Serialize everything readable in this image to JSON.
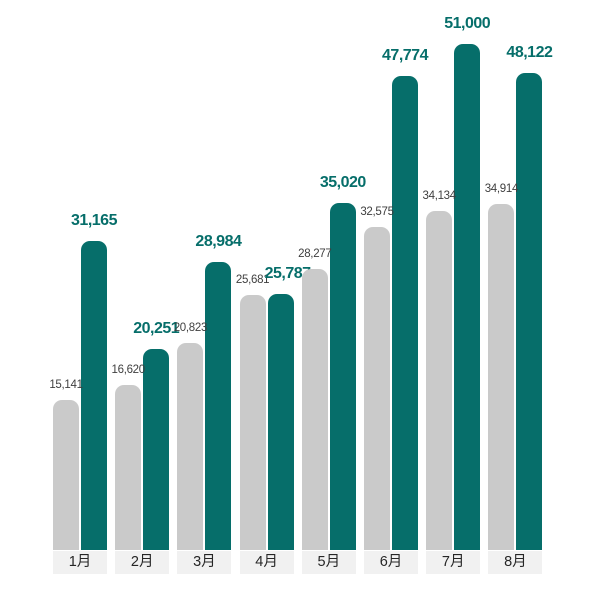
{
  "chart_data": {
    "type": "bar",
    "title": "",
    "xlabel": "",
    "ylabel": "",
    "categories": [
      "1月",
      "2月",
      "3月",
      "4月",
      "5月",
      "6月",
      "7月",
      "8月"
    ],
    "series": [
      {
        "name": "gray-series",
        "color": "#cacaca",
        "values": [
          15141,
          16620,
          20823,
          25681,
          28277,
          32575,
          34134,
          34914
        ],
        "labels": [
          "15,141",
          "16,620",
          "20,823",
          "25,681",
          "28,277",
          "32,575",
          "34,134",
          "34,914"
        ]
      },
      {
        "name": "teal-series",
        "color": "#066e6a",
        "values": [
          31165,
          20251,
          28984,
          25787,
          35020,
          47774,
          51000,
          48122
        ],
        "labels": [
          "31,165",
          "20,251",
          "28,984",
          "25,787",
          "35,020",
          "47,774",
          "51,000",
          "48,122"
        ]
      }
    ],
    "ylim": [
      0,
      51000
    ],
    "grid": false,
    "legend": "none",
    "colors": {
      "teal_bar": "#066e6a",
      "gray_bar": "#cacaca",
      "teal_value_text": "#066e6a",
      "gray_value_text": "#3f3f3f",
      "month_text": "#262626",
      "month_band_bg": "#f1f1f1",
      "background": "#ffffff"
    }
  }
}
